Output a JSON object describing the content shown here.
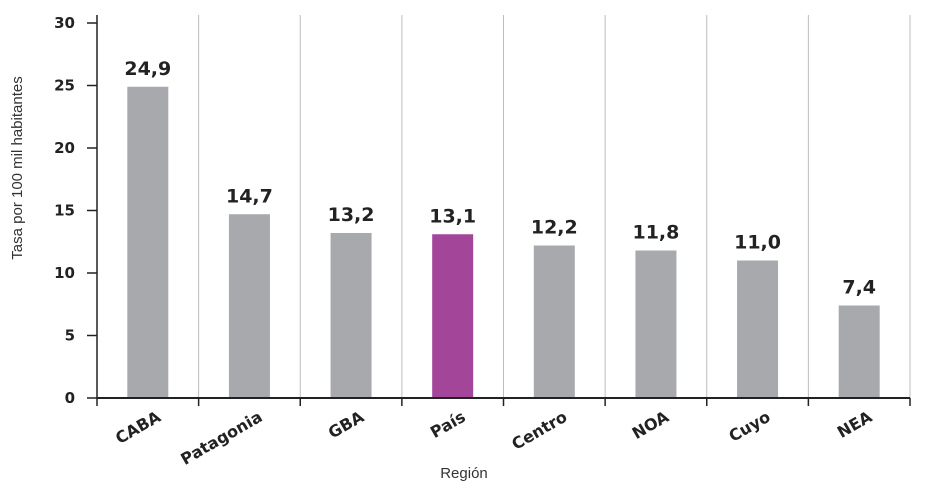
{
  "chart_data": {
    "type": "bar",
    "categories": [
      "CABA",
      "Patagonia",
      "GBA",
      "País",
      "Centro",
      "NOA",
      "Cuyo",
      "NEA"
    ],
    "values": [
      24.9,
      14.7,
      13.2,
      13.1,
      12.2,
      11.8,
      11.0,
      7.4
    ],
    "data_labels": [
      "24,9",
      "14,7",
      "13,2",
      "13,1",
      "12,2",
      "11,8",
      "11,0",
      "7,4"
    ],
    "title": "",
    "xlabel": "Región",
    "ylabel": "Tasa por 100 mil habitantes",
    "ylim": [
      0,
      30
    ],
    "yticks": [
      0,
      5,
      10,
      15,
      20,
      25,
      30
    ],
    "grid": "vertical",
    "legend": "none",
    "colors": {
      "bar": "#a7a9ac",
      "highlight": "#a3469a",
      "highlight_category": "País",
      "grid": "#bdbdbd",
      "axis": "#222222"
    }
  }
}
